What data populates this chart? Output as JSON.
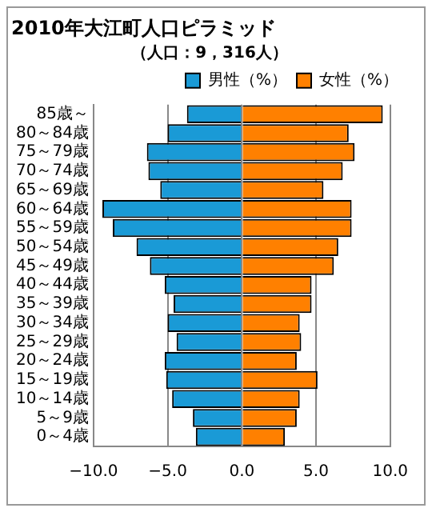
{
  "chart_data": {
    "type": "bar",
    "title": "2010年大江町人口ピラミッド",
    "subtitle": "（人口：9，316人）",
    "orientation": "horizontal",
    "stacked": true,
    "categories": [
      "85歳～",
      "80～84歳",
      "75～79歳",
      "70～74歳",
      "65～69歳",
      "60～64歳",
      "55～59歳",
      "50～54歳",
      "45～49歳",
      "40～44歳",
      "35～39歳",
      "30～34歳",
      "25～29歳",
      "20～24歳",
      "15～19歳",
      "10～14歳",
      "5～9歳",
      "0～4歳"
    ],
    "series": [
      {
        "name": "男性（%）",
        "color": "#1a9ad6",
        "values": [
          -3.7,
          -5.0,
          -6.4,
          -6.3,
          -5.5,
          -9.4,
          -8.7,
          -7.1,
          -6.2,
          -5.2,
          -4.6,
          -5.0,
          -4.4,
          -5.2,
          -5.1,
          -4.7,
          -3.3,
          -3.1
        ]
      },
      {
        "name": "女性（%）",
        "color": "#ff8000",
        "values": [
          9.5,
          7.2,
          7.6,
          6.8,
          5.5,
          7.4,
          7.4,
          6.5,
          6.2,
          4.7,
          4.7,
          3.9,
          4.0,
          3.7,
          5.1,
          3.9,
          3.7,
          2.9
        ]
      }
    ],
    "xlim": [
      -10,
      10
    ],
    "xticks": [
      {
        "value": -10,
        "label": "−10.0"
      },
      {
        "value": -5,
        "label": "−5.0"
      },
      {
        "value": 0,
        "label": "0.0"
      },
      {
        "value": 5,
        "label": "5.0"
      },
      {
        "value": 10,
        "label": "10.0"
      }
    ],
    "grid": "x",
    "legend": "top right"
  }
}
